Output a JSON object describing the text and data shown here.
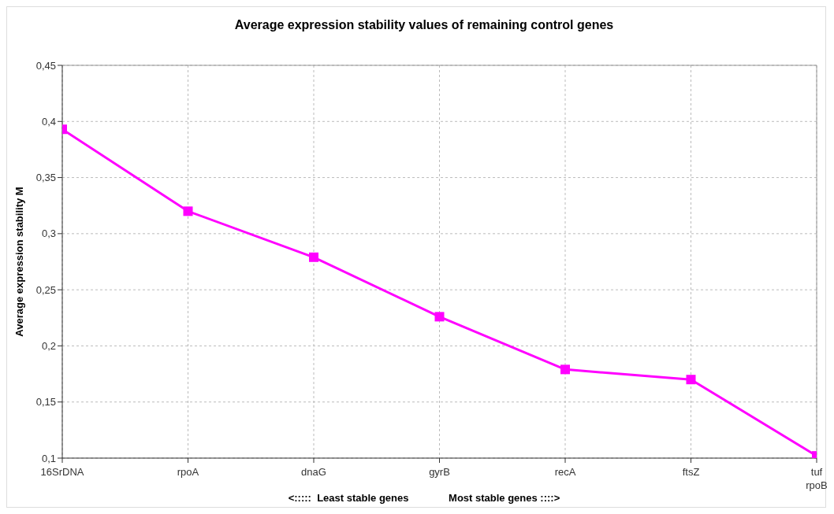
{
  "chart_data": {
    "type": "line",
    "title": "Average expression stability values of remaining control genes",
    "xlabel": "<:::::  Least stable genes              Most stable genes ::::>",
    "ylabel": "Average expression stability M",
    "categories": [
      "16SrDNA",
      "rpoA",
      "dnaG",
      "gyrB",
      "recA",
      "ftsZ",
      "tuf rpoB"
    ],
    "series": [
      {
        "color": "#ff00ff",
        "values": [
          0.393,
          0.32,
          0.279,
          0.226,
          0.179,
          0.17,
          0.102
        ]
      }
    ],
    "ylim": [
      0.1,
      0.45
    ],
    "yticks": [
      {
        "value": 0.1,
        "label": "0,1"
      },
      {
        "value": 0.15,
        "label": "0,15"
      },
      {
        "value": 0.2,
        "label": "0,2"
      },
      {
        "value": 0.25,
        "label": "0,25"
      },
      {
        "value": 0.3,
        "label": "0,3"
      },
      {
        "value": 0.35,
        "label": "0,35"
      },
      {
        "value": 0.4,
        "label": "0,4"
      },
      {
        "value": 0.45,
        "label": "0,45"
      }
    ],
    "grid": true,
    "marker": "square",
    "line_style": "solid",
    "legend": false
  }
}
